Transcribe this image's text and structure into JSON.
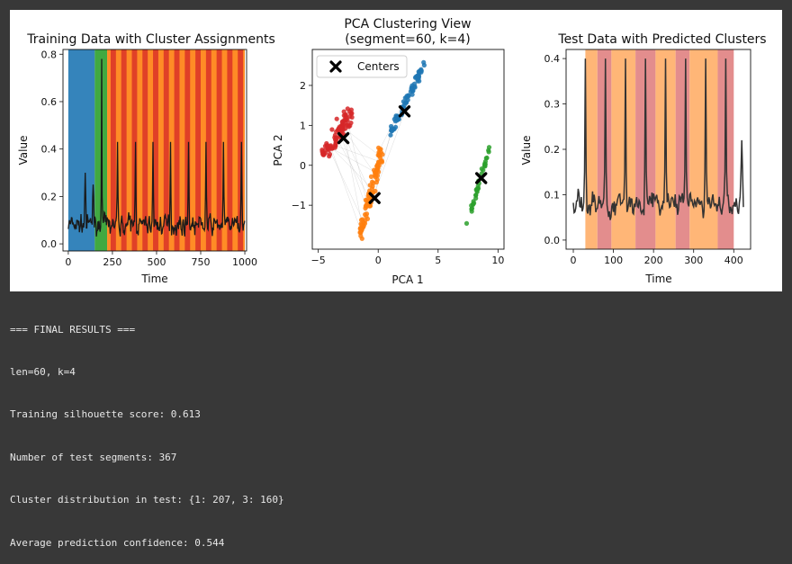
{
  "chart_data": [
    {
      "type": "line",
      "title": "Training Data with Cluster Assignments",
      "xlabel": "Time",
      "ylabel": "Value",
      "xlim": [
        -30,
        1010
      ],
      "ylim": [
        -0.03,
        0.82
      ],
      "xticks": [
        0,
        250,
        500,
        750,
        1000
      ],
      "xtick_labels": [
        "0",
        "250",
        "500",
        "750",
        "1000"
      ],
      "yticks": [
        0.0,
        0.2,
        0.4,
        0.6,
        0.8
      ],
      "ytick_labels": [
        "0.0",
        "0.2",
        "0.4",
        "0.6",
        "0.8"
      ],
      "spike_times": [
        95,
        140,
        190,
        280,
        380,
        480,
        580,
        680,
        780,
        880,
        980
      ],
      "spike_values": [
        0.3,
        0.25,
        0.78,
        0.43,
        0.43,
        0.43,
        0.43,
        0.43,
        0.43,
        0.43,
        0.43
      ],
      "baseline_mean": 0.08,
      "baseline_amplitude": 0.06,
      "segment_length": 60,
      "cluster_bands": [
        {
          "start": 0,
          "end": 150,
          "cluster": 0
        },
        {
          "start": 150,
          "end": 220,
          "cluster": 2
        },
        {
          "start": 220,
          "end": 1000,
          "cluster": 1
        }
      ],
      "band_colors": {
        "0": "#1f77b4",
        "1": "#ff7f0e",
        "2": "#2ca02c",
        "3": "#d62728"
      }
    },
    {
      "type": "scatter",
      "title": "PCA Clustering View",
      "subtitle": "(segment=60, k=4)",
      "xlabel": "PCA 1",
      "ylabel": "PCA 2",
      "xlim": [
        -5.5,
        10.5
      ],
      "ylim": [
        -2.1,
        2.9
      ],
      "xticks": [
        -5,
        0,
        5,
        10
      ],
      "xtick_labels": [
        "−5",
        "0",
        "5",
        "10"
      ],
      "yticks": [
        -1,
        0,
        1,
        2
      ],
      "ytick_labels": [
        "−1",
        "0",
        "1",
        "2"
      ],
      "legend": {
        "label": "Centers",
        "position": "top-left"
      },
      "centers": [
        {
          "cluster": 0,
          "x": 2.2,
          "y": 1.35
        },
        {
          "cluster": 1,
          "x": -0.3,
          "y": -0.82
        },
        {
          "cluster": 2,
          "x": 8.6,
          "y": -0.32
        },
        {
          "cluster": 3,
          "x": -2.9,
          "y": 0.68
        }
      ],
      "cluster_colors": {
        "0": "#1f77b4",
        "1": "#ff7f0e",
        "2": "#2ca02c",
        "3": "#d62728"
      },
      "cluster_shapes": [
        {
          "cluster": 0,
          "from": [
            0.9,
            0.75
          ],
          "to": [
            3.9,
            2.55
          ],
          "width": 0.45,
          "count": 70
        },
        {
          "cluster": 1,
          "from": [
            0.3,
            0.4
          ],
          "to": [
            -1.5,
            -1.75
          ],
          "width": 0.7,
          "count": 95
        },
        {
          "cluster": 2,
          "from": [
            9.3,
            0.45
          ],
          "to": [
            7.4,
            -1.5
          ],
          "width": 0.25,
          "count": 35
        },
        {
          "cluster": 3,
          "from": [
            -4.6,
            0.2
          ],
          "to": [
            -2.2,
            1.35
          ],
          "width": 0.9,
          "count": 85
        }
      ]
    },
    {
      "type": "line",
      "title": "Test Data with Predicted Clusters",
      "xlabel": "Time",
      "ylabel": "Value",
      "xlim": [
        -18,
        442
      ],
      "ylim": [
        -0.02,
        0.42
      ],
      "xticks": [
        0,
        100,
        200,
        300,
        400
      ],
      "xtick_labels": [
        "0",
        "100",
        "200",
        "300",
        "400"
      ],
      "yticks": [
        0.0,
        0.1,
        0.2,
        0.3,
        0.4
      ],
      "ytick_labels": [
        "0.0",
        "0.1",
        "0.2",
        "0.3",
        "0.4"
      ],
      "spike_times": [
        30,
        80,
        130,
        180,
        230,
        280,
        330,
        380,
        420
      ],
      "spike_values": [
        0.4,
        0.4,
        0.4,
        0.4,
        0.4,
        0.4,
        0.4,
        0.4,
        0.22
      ],
      "baseline_mean": 0.08,
      "baseline_amplitude": 0.04,
      "cluster_bands": [
        {
          "start": 30,
          "end": 60,
          "cluster": 1
        },
        {
          "start": 60,
          "end": 95,
          "cluster": 3
        },
        {
          "start": 95,
          "end": 155,
          "cluster": 1
        },
        {
          "start": 155,
          "end": 205,
          "cluster": 3
        },
        {
          "start": 205,
          "end": 255,
          "cluster": 1
        },
        {
          "start": 255,
          "end": 290,
          "cluster": 3
        },
        {
          "start": 290,
          "end": 360,
          "cluster": 1
        },
        {
          "start": 360,
          "end": 400,
          "cluster": 3
        }
      ],
      "band_colors": {
        "1": "#ffb677",
        "3": "#e38d8d"
      }
    }
  ],
  "output_lines": [
    "=== FINAL RESULTS ===",
    "len=60, k=4",
    "Training silhouette score: 0.613",
    "Number of test segments: 367",
    "Cluster distribution in test: {1: 207, 3: 160}",
    "Average prediction confidence: 0.544"
  ]
}
